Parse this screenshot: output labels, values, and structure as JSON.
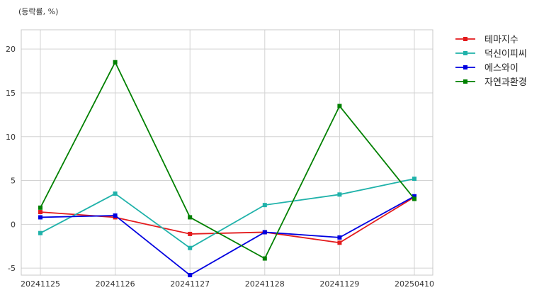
{
  "chart_data": {
    "type": "line",
    "unit_label": "(등락률, %)",
    "categories": [
      "20241125",
      "20241126",
      "20241127",
      "20241128",
      "20241129",
      "20250410"
    ],
    "ylim": [
      -5.8,
      22.2
    ],
    "yticks": [
      -5,
      0,
      5,
      10,
      15,
      20
    ],
    "grid": true,
    "legend_position": "top-right, outside plot",
    "series": [
      {
        "name": "테마지수",
        "color": "#e31a1c",
        "values": [
          1.4,
          0.8,
          -1.1,
          -0.9,
          -2.1,
          3.1
        ]
      },
      {
        "name": "덕신이피씨",
        "color": "#20b2aa",
        "values": [
          -1.0,
          3.5,
          -2.7,
          2.2,
          3.4,
          5.2
        ]
      },
      {
        "name": "에스와이",
        "color": "#0000e0",
        "values": [
          0.8,
          1.0,
          -5.8,
          -0.9,
          -1.5,
          3.2
        ]
      },
      {
        "name": "자연과환경",
        "color": "#008000",
        "values": [
          1.9,
          18.5,
          0.8,
          -3.9,
          13.5,
          2.9
        ]
      }
    ]
  }
}
